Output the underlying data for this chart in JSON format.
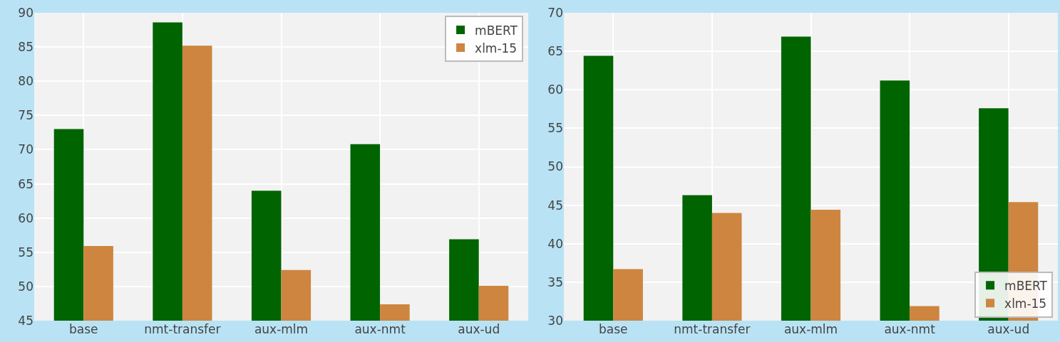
{
  "chart_data": [
    {
      "type": "bar",
      "categories": [
        "base",
        "nmt-transfer",
        "aux-mlm",
        "aux-nmt",
        "aux-ud"
      ],
      "series": [
        {
          "name": "mBERT",
          "color": "#006400",
          "values": [
            73.0,
            88.6,
            64.0,
            70.8,
            56.9
          ]
        },
        {
          "name": "xlm-15",
          "color": "#cd853f",
          "values": [
            55.9,
            85.2,
            52.4,
            47.4,
            50.1
          ]
        }
      ],
      "ylim": [
        45,
        90
      ],
      "yticks": [
        45,
        50,
        55,
        60,
        65,
        70,
        75,
        80,
        85,
        90
      ],
      "grid": true,
      "legend": "top right"
    },
    {
      "type": "bar",
      "categories": [
        "base",
        "nmt-transfer",
        "aux-mlm",
        "aux-nmt",
        "aux-ud"
      ],
      "series": [
        {
          "name": "mBERT",
          "color": "#006400",
          "values": [
            64.4,
            46.3,
            66.9,
            61.2,
            57.6
          ]
        },
        {
          "name": "xlm-15",
          "color": "#cd853f",
          "values": [
            36.7,
            44.0,
            44.4,
            31.9,
            45.4
          ]
        }
      ],
      "ylim": [
        30,
        70
      ],
      "yticks": [
        30,
        35,
        40,
        45,
        50,
        55,
        60,
        65,
        70
      ],
      "grid": true,
      "legend": "bottom right"
    }
  ]
}
